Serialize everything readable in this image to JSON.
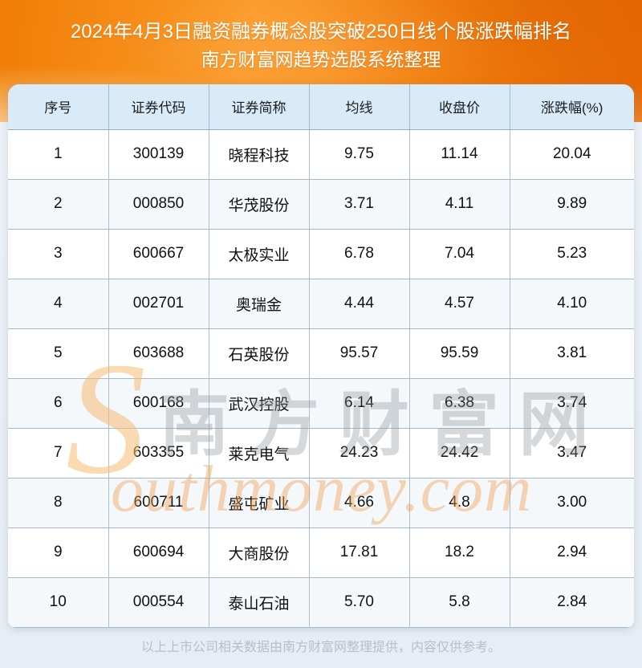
{
  "header": {
    "title_line1": "2024年4月3日融资融券概念股突破250日线个股涨跌幅排名",
    "title_line2": "南方财富网趋势选股系统整理",
    "accent_color": "#f5820a"
  },
  "chart_data": {
    "type": "table",
    "title": "2024年4月3日融资融券概念股突破250日线个股涨跌幅排名",
    "subtitle": "南方财富网趋势选股系统整理",
    "columns": [
      "序号",
      "证券代码",
      "证券简称",
      "均线",
      "收盘价",
      "涨跌幅(%)"
    ],
    "rows": [
      [
        "1",
        "300139",
        "晓程科技",
        "9.75",
        "11.14",
        "20.04"
      ],
      [
        "2",
        "000850",
        "华茂股份",
        "3.71",
        "4.11",
        "9.89"
      ],
      [
        "3",
        "600667",
        "太极实业",
        "6.78",
        "7.04",
        "5.23"
      ],
      [
        "4",
        "002701",
        "奥瑞金",
        "4.44",
        "4.57",
        "4.10"
      ],
      [
        "5",
        "603688",
        "石英股份",
        "95.57",
        "95.59",
        "3.81"
      ],
      [
        "6",
        "600168",
        "武汉控股",
        "6.14",
        "6.38",
        "3.74"
      ],
      [
        "7",
        "603355",
        "莱克电气",
        "24.23",
        "24.42",
        "3.47"
      ],
      [
        "8",
        "600711",
        "盛屯矿业",
        "4.66",
        "4.8",
        "3.00"
      ],
      [
        "9",
        "600694",
        "大商股份",
        "17.81",
        "18.2",
        "2.94"
      ],
      [
        "10",
        "000554",
        "泰山石油",
        "5.70",
        "5.8",
        "2.84"
      ]
    ],
    "header_bg": "#d9eaf8",
    "border_color": "#a3bacb",
    "even_row_bg": "#f4f8fb"
  },
  "watermark": {
    "big_s": "S",
    "cn_text": "南方财富网",
    "en_text": "outhmoney.com",
    "orange": "#f2a654",
    "gray": "#9aa0a6"
  },
  "footer": {
    "disclaimer": "以上上市公司相关数据由南方财富网整理提供，内容仅供参考。",
    "text_color": "#b6bec8"
  }
}
